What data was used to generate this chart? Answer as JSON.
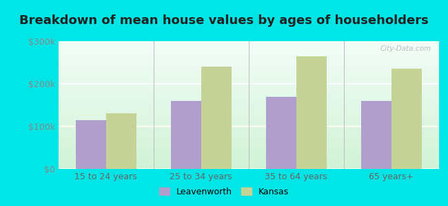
{
  "title": "Breakdown of mean house values by ages of householders",
  "categories": [
    "15 to 24 years",
    "25 to 34 years",
    "35 to 64 years",
    "65 years+"
  ],
  "leavenworth_values": [
    115000,
    160000,
    170000,
    160000
  ],
  "kansas_values": [
    130000,
    240000,
    265000,
    235000
  ],
  "leavenworth_color": "#b09fcc",
  "kansas_color": "#c5d496",
  "background_color": "#00e5e5",
  "ylim": [
    0,
    300000
  ],
  "yticks": [
    0,
    100000,
    200000,
    300000
  ],
  "ytick_labels": [
    "$0",
    "$100k",
    "$200k",
    "$300k"
  ],
  "title_fontsize": 13,
  "legend_leavenworth": "Leavenworth",
  "legend_kansas": "Kansas",
  "bar_width": 0.32,
  "watermark": "City-Data.com"
}
